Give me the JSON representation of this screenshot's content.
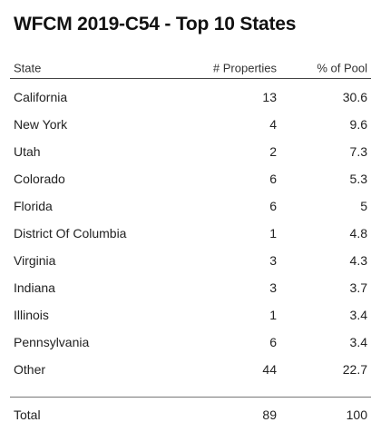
{
  "title": "WFCM 2019-C54 - Top 10 States",
  "columns": {
    "state": "State",
    "properties": "# Properties",
    "pct_pool": "% of Pool"
  },
  "rows": [
    {
      "state": "California",
      "properties": "13",
      "pct_pool": "30.6"
    },
    {
      "state": "New York",
      "properties": "4",
      "pct_pool": "9.6"
    },
    {
      "state": "Utah",
      "properties": "2",
      "pct_pool": "7.3"
    },
    {
      "state": "Colorado",
      "properties": "6",
      "pct_pool": "5.3"
    },
    {
      "state": "Florida",
      "properties": "6",
      "pct_pool": "5"
    },
    {
      "state": "District Of Columbia",
      "properties": "1",
      "pct_pool": "4.8"
    },
    {
      "state": "Virginia",
      "properties": "3",
      "pct_pool": "4.3"
    },
    {
      "state": "Indiana",
      "properties": "3",
      "pct_pool": "3.7"
    },
    {
      "state": "Illinois",
      "properties": "1",
      "pct_pool": "3.4"
    },
    {
      "state": "Pennsylvania",
      "properties": "6",
      "pct_pool": "3.4"
    },
    {
      "state": "Other",
      "properties": "44",
      "pct_pool": "22.7"
    }
  ],
  "total": {
    "label": "Total",
    "properties": "89",
    "pct_pool": "100"
  }
}
